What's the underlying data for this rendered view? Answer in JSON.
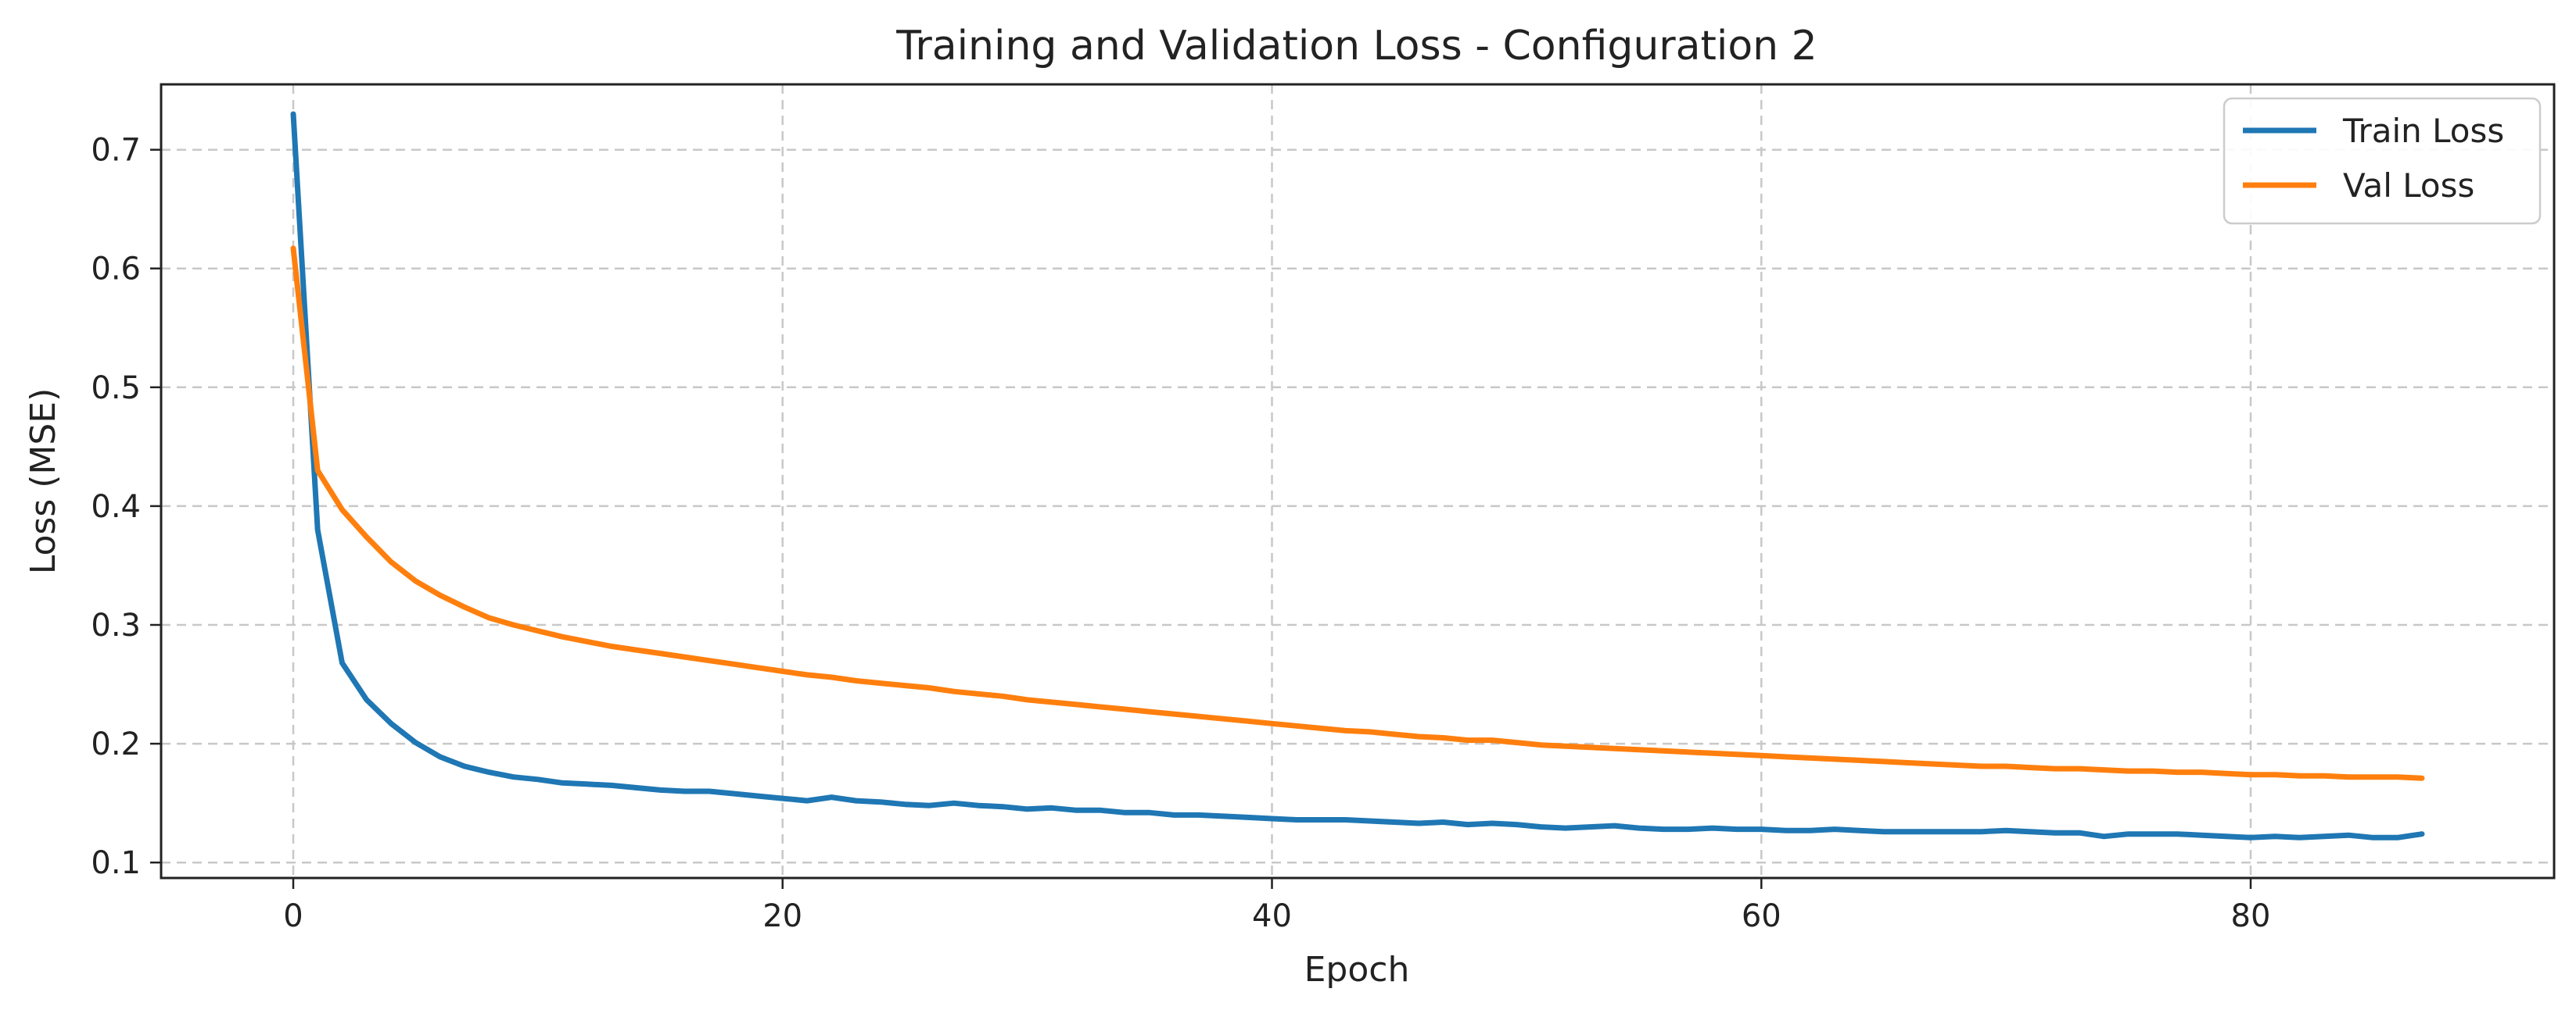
{
  "chart_data": {
    "type": "line",
    "title": "Training and Validation Loss - Configuration 2",
    "xlabel": "Epoch",
    "ylabel": "Loss (MSE)",
    "xlim": [
      -5.4,
      92.4
    ],
    "ylim": [
      0.087,
      0.755
    ],
    "x_ticks": [
      0,
      20,
      40,
      60,
      80
    ],
    "x_tick_labels": [
      "0",
      "20",
      "40",
      "60",
      "80"
    ],
    "y_ticks": [
      0.1,
      0.2,
      0.3,
      0.4,
      0.5,
      0.6,
      0.7
    ],
    "y_tick_labels": [
      "0.1",
      "0.2",
      "0.3",
      "0.4",
      "0.5",
      "0.6",
      "0.7"
    ],
    "grid": true,
    "legend_position": "top-right",
    "series": [
      {
        "name": "Train Loss",
        "color": "#1f77b4",
        "x": [
          0,
          1,
          2,
          3,
          4,
          5,
          6,
          7,
          8,
          9,
          10,
          11,
          12,
          13,
          14,
          15,
          16,
          17,
          18,
          19,
          20,
          21,
          22,
          23,
          24,
          25,
          26,
          27,
          28,
          29,
          30,
          31,
          32,
          33,
          34,
          35,
          36,
          37,
          38,
          39,
          40,
          41,
          42,
          43,
          44,
          45,
          46,
          47,
          48,
          49,
          50,
          51,
          52,
          53,
          54,
          55,
          56,
          57,
          58,
          59,
          60,
          61,
          62,
          63,
          64,
          65,
          66,
          67,
          68,
          69,
          70,
          71,
          72,
          73,
          74,
          75,
          76,
          77,
          78,
          79,
          80,
          81,
          82,
          83,
          84,
          85,
          86,
          87
        ],
        "values": [
          0.73,
          0.38,
          0.268,
          0.237,
          0.217,
          0.201,
          0.189,
          0.181,
          0.176,
          0.172,
          0.17,
          0.167,
          0.166,
          0.165,
          0.163,
          0.161,
          0.16,
          0.16,
          0.158,
          0.156,
          0.154,
          0.152,
          0.155,
          0.152,
          0.151,
          0.149,
          0.148,
          0.15,
          0.148,
          0.147,
          0.145,
          0.146,
          0.144,
          0.144,
          0.142,
          0.142,
          0.14,
          0.14,
          0.139,
          0.138,
          0.137,
          0.136,
          0.136,
          0.136,
          0.135,
          0.134,
          0.133,
          0.134,
          0.132,
          0.133,
          0.132,
          0.13,
          0.129,
          0.13,
          0.131,
          0.129,
          0.128,
          0.128,
          0.129,
          0.128,
          0.128,
          0.127,
          0.127,
          0.128,
          0.127,
          0.126,
          0.126,
          0.126,
          0.126,
          0.126,
          0.127,
          0.126,
          0.125,
          0.125,
          0.122,
          0.124,
          0.124,
          0.124,
          0.123,
          0.122,
          0.121,
          0.122,
          0.121,
          0.122,
          0.123,
          0.121,
          0.121,
          0.124
        ]
      },
      {
        "name": "Val Loss",
        "color": "#ff7f0e",
        "x": [
          0,
          1,
          2,
          3,
          4,
          5,
          6,
          7,
          8,
          9,
          10,
          11,
          12,
          13,
          14,
          15,
          16,
          17,
          18,
          19,
          20,
          21,
          22,
          23,
          24,
          25,
          26,
          27,
          28,
          29,
          30,
          31,
          32,
          33,
          34,
          35,
          36,
          37,
          38,
          39,
          40,
          41,
          42,
          43,
          44,
          45,
          46,
          47,
          48,
          49,
          50,
          51,
          52,
          53,
          54,
          55,
          56,
          57,
          58,
          59,
          60,
          61,
          62,
          63,
          64,
          65,
          66,
          67,
          68,
          69,
          70,
          71,
          72,
          73,
          74,
          75,
          76,
          77,
          78,
          79,
          80,
          81,
          82,
          83,
          84,
          85,
          86,
          87
        ],
        "values": [
          0.617,
          0.43,
          0.397,
          0.374,
          0.353,
          0.337,
          0.325,
          0.315,
          0.306,
          0.3,
          0.295,
          0.29,
          0.286,
          0.282,
          0.279,
          0.276,
          0.273,
          0.27,
          0.267,
          0.264,
          0.261,
          0.258,
          0.256,
          0.253,
          0.251,
          0.249,
          0.247,
          0.244,
          0.242,
          0.24,
          0.237,
          0.235,
          0.233,
          0.231,
          0.229,
          0.227,
          0.225,
          0.223,
          0.221,
          0.219,
          0.217,
          0.215,
          0.213,
          0.211,
          0.21,
          0.208,
          0.206,
          0.205,
          0.203,
          0.203,
          0.201,
          0.199,
          0.198,
          0.197,
          0.196,
          0.195,
          0.194,
          0.193,
          0.192,
          0.191,
          0.19,
          0.189,
          0.188,
          0.187,
          0.186,
          0.185,
          0.184,
          0.183,
          0.182,
          0.181,
          0.181,
          0.18,
          0.179,
          0.179,
          0.178,
          0.177,
          0.177,
          0.176,
          0.176,
          0.175,
          0.174,
          0.174,
          0.173,
          0.173,
          0.172,
          0.172,
          0.172,
          0.171
        ]
      }
    ]
  }
}
